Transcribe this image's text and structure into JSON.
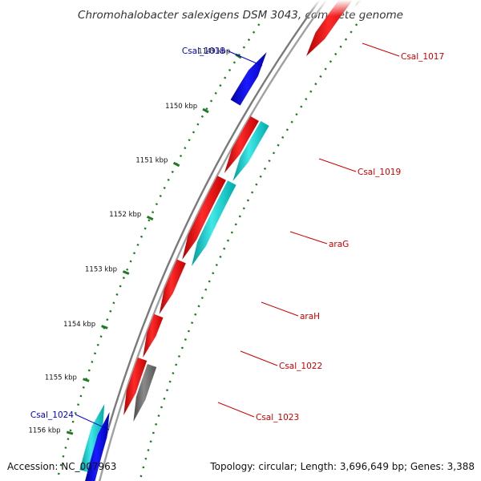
{
  "title": "Chromohalobacter salexigens DSM 3043, complete genome",
  "footer": {
    "accession": "Accession: NC_007963",
    "summary": "Topology: circular; Length: 3,696,649 bp; Genes: 3,388"
  },
  "colors": {
    "forward_label": "#0000cc",
    "reverse_label": "#cc0000",
    "backbone": "#7a7a7a",
    "tick_dots": "#1e7a1e"
  },
  "scale": {
    "unit": "kbp",
    "ticks": [
      {
        "label": "1149 kbp"
      },
      {
        "label": "1150 kbp"
      },
      {
        "label": "1151 kbp"
      },
      {
        "label": "1152 kbp"
      },
      {
        "label": "1153 kbp"
      },
      {
        "label": "1154 kbp"
      },
      {
        "label": "1155 kbp"
      },
      {
        "label": "1156 kbp"
      }
    ]
  },
  "genes": [
    {
      "label": "Csal_1017",
      "strand": "reverse",
      "color": "#ff0000"
    },
    {
      "label": "Csal_1018",
      "strand": "forward",
      "color": "#0000ee"
    },
    {
      "label": "Csal_1019",
      "strand": "reverse",
      "color": "#ff0000"
    },
    {
      "label": "araG",
      "strand": "reverse",
      "color": "#ff0000"
    },
    {
      "label": "araH",
      "strand": "reverse",
      "color": "#ff0000"
    },
    {
      "label": "Csal_1022",
      "strand": "reverse",
      "color": "#ff0000"
    },
    {
      "label": "Csal_1023",
      "strand": "reverse",
      "color": "#ff0000"
    },
    {
      "label": "Csal_1024",
      "strand": "forward",
      "color": "#0000ee"
    }
  ]
}
